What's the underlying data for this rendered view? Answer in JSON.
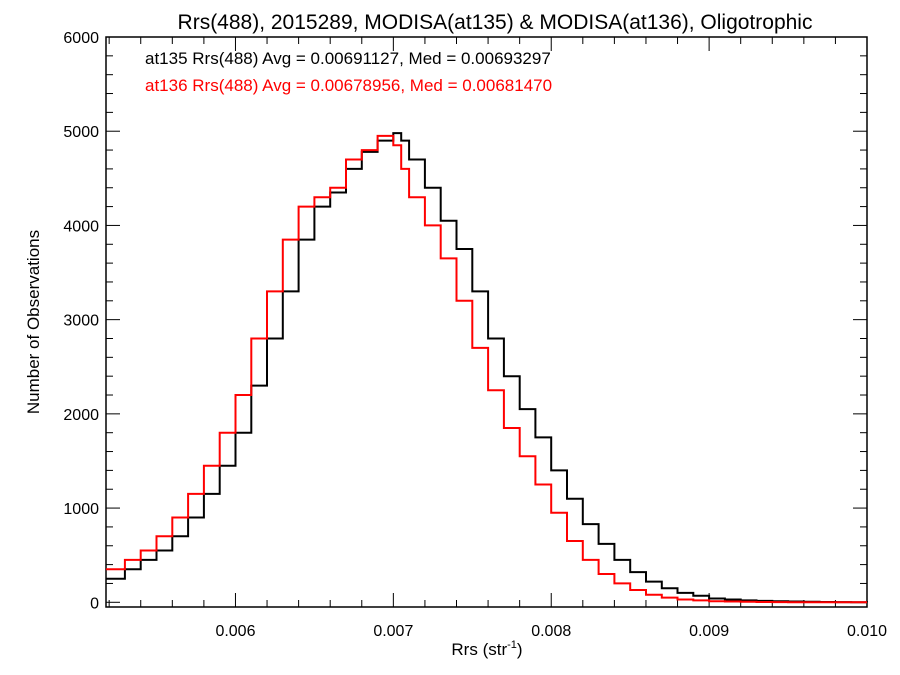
{
  "chart_data": {
    "type": "line",
    "title": "Rrs(488), 2015289, MODISA(at135) & MODISA(at136), Oligotrophic",
    "xlabel": "Rrs (str",
    "xlabel_sup": "-1",
    "xlabel_end": ")",
    "ylabel": "Number of Observations",
    "xlim": [
      0.00518,
      0.01
    ],
    "ylim": [
      -50,
      6000
    ],
    "xticks": [
      0.006,
      0.007,
      0.008,
      0.009,
      0.01
    ],
    "xtick_labels": [
      "0.006",
      "0.007",
      "0.008",
      "0.009",
      "0.010"
    ],
    "yticks": [
      0,
      1000,
      2000,
      3000,
      4000,
      5000,
      6000
    ],
    "ytick_labels": [
      "0",
      "1000",
      "2000",
      "3000",
      "4000",
      "5000",
      "6000"
    ],
    "grid": false,
    "annotations": [
      {
        "text": "at135 Rrs(488) Avg = 0.00691127, Med = 0.00693297",
        "color": "#000000"
      },
      {
        "text": "at136 Rrs(488) Avg = 0.00678956, Med = 0.00681470",
        "color": "#ff0000"
      }
    ],
    "series": [
      {
        "color": "#000000",
        "x": [
          0.00518,
          0.0053,
          0.0054,
          0.0055,
          0.0056,
          0.0057,
          0.0058,
          0.0059,
          0.006,
          0.0061,
          0.0062,
          0.0063,
          0.0064,
          0.0065,
          0.0066,
          0.0067,
          0.0068,
          0.0069,
          0.007,
          0.00705,
          0.0071,
          0.0072,
          0.0073,
          0.0074,
          0.0075,
          0.0076,
          0.0077,
          0.0078,
          0.0079,
          0.008,
          0.0081,
          0.0082,
          0.0083,
          0.0084,
          0.0085,
          0.0086,
          0.0087,
          0.0088,
          0.0089,
          0.009,
          0.0091,
          0.0092,
          0.0093,
          0.0094,
          0.0095,
          0.0096,
          0.0097,
          0.0098,
          0.0099,
          0.01
        ],
        "y": [
          250,
          350,
          450,
          550,
          700,
          900,
          1150,
          1450,
          1800,
          2300,
          2800,
          3300,
          3850,
          4200,
          4350,
          4600,
          4780,
          4900,
          4980,
          4900,
          4700,
          4400,
          4050,
          3750,
          3300,
          2800,
          2400,
          2050,
          1750,
          1400,
          1100,
          830,
          620,
          450,
          320,
          220,
          150,
          100,
          70,
          40,
          30,
          20,
          15,
          10,
          8,
          5,
          3,
          2,
          1,
          0
        ]
      },
      {
        "color": "#ff0000",
        "x": [
          0.00518,
          0.0053,
          0.0054,
          0.0055,
          0.0056,
          0.0057,
          0.0058,
          0.0059,
          0.006,
          0.0061,
          0.0062,
          0.0063,
          0.0064,
          0.0065,
          0.0066,
          0.0067,
          0.0068,
          0.0069,
          0.007,
          0.00705,
          0.0071,
          0.0072,
          0.0073,
          0.0074,
          0.0075,
          0.0076,
          0.0077,
          0.0078,
          0.0079,
          0.008,
          0.0081,
          0.0082,
          0.0083,
          0.0084,
          0.0085,
          0.0086,
          0.0087,
          0.0088,
          0.0089,
          0.009,
          0.0091,
          0.0092,
          0.0093,
          0.0094,
          0.0095,
          0.0096,
          0.0097,
          0.0098,
          0.0099,
          0.01
        ],
        "y": [
          350,
          450,
          550,
          700,
          900,
          1150,
          1450,
          1800,
          2200,
          2800,
          3300,
          3850,
          4200,
          4300,
          4400,
          4700,
          4800,
          4950,
          4850,
          4600,
          4300,
          4000,
          3650,
          3200,
          2700,
          2250,
          1850,
          1550,
          1250,
          950,
          650,
          450,
          300,
          200,
          130,
          80,
          50,
          30,
          20,
          12,
          8,
          5,
          3,
          2,
          1,
          1,
          0,
          0,
          0,
          0
        ]
      }
    ]
  }
}
